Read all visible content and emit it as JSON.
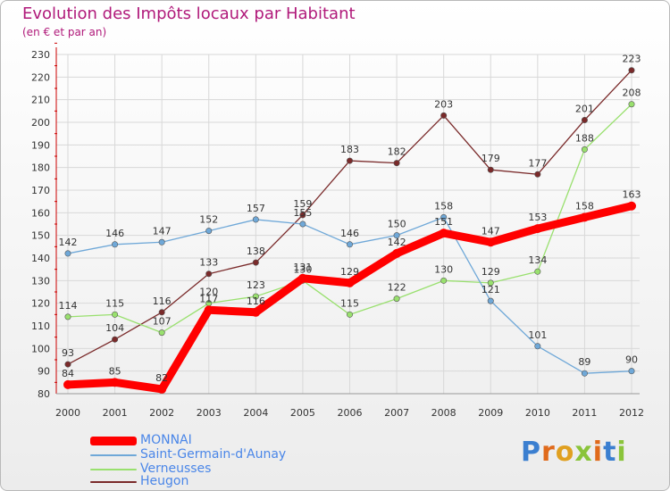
{
  "title": "Evolution des Impôts locaux par Habitant",
  "subtitle": "(en € et par an)",
  "logo_text": "Proxiti",
  "chart_data": {
    "type": "line",
    "x": [
      2000,
      2001,
      2002,
      2003,
      2004,
      2005,
      2006,
      2007,
      2008,
      2009,
      2010,
      2011,
      2012
    ],
    "ylim": [
      80,
      230
    ],
    "ytick_step": 10,
    "series": [
      {
        "name": "MONNAI",
        "color": "#ff0000",
        "values": [
          84,
          85,
          82,
          117,
          116,
          131,
          129,
          142,
          151,
          147,
          153,
          158,
          163
        ]
      },
      {
        "name": "Saint-Germain-d'Aunay",
        "color": "#6fa8d8",
        "values": [
          142,
          146,
          147,
          152,
          157,
          155,
          146,
          150,
          158,
          121,
          101,
          89,
          90
        ]
      },
      {
        "name": "Verneusses",
        "color": "#99e06e",
        "values": [
          114,
          115,
          107,
          120,
          123,
          130,
          115,
          122,
          130,
          129,
          134,
          188,
          208
        ]
      },
      {
        "name": "Heugon",
        "color": "#7a2a2a",
        "values": [
          93,
          104,
          116,
          133,
          138,
          159,
          183,
          182,
          203,
          179,
          177,
          201,
          223
        ]
      }
    ]
  }
}
